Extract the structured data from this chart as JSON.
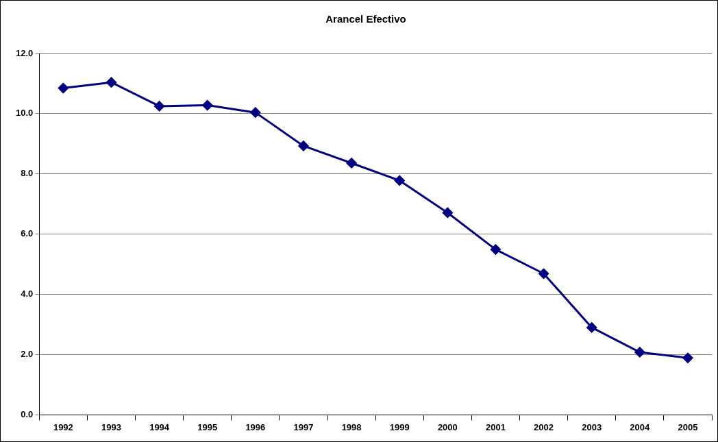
{
  "chart_data": {
    "type": "line",
    "title": "Arancel Efectivo",
    "categories": [
      "1992",
      "1993",
      "1994",
      "1995",
      "1996",
      "1997",
      "1998",
      "1999",
      "2000",
      "2001",
      "2002",
      "2003",
      "2004",
      "2005"
    ],
    "series": [
      {
        "color": "#000080",
        "values": [
          10.85,
          11.04,
          10.25,
          10.28,
          10.04,
          8.93,
          8.36,
          7.78,
          6.71,
          5.49,
          4.69,
          2.9,
          2.08,
          1.89
        ]
      }
    ],
    "ylim": [
      0,
      12
    ],
    "yticks": [
      {
        "value": 0,
        "label": "0.0"
      },
      {
        "value": 2,
        "label": "2.0"
      },
      {
        "value": 4,
        "label": "4.0"
      },
      {
        "value": 6,
        "label": "6.0"
      },
      {
        "value": 8,
        "label": "8.0"
      },
      {
        "value": 10,
        "label": "10.0"
      },
      {
        "value": 12,
        "label": "12.0"
      }
    ],
    "grid": "y",
    "legend": false,
    "marker": "diamond",
    "line_style": "solid"
  }
}
